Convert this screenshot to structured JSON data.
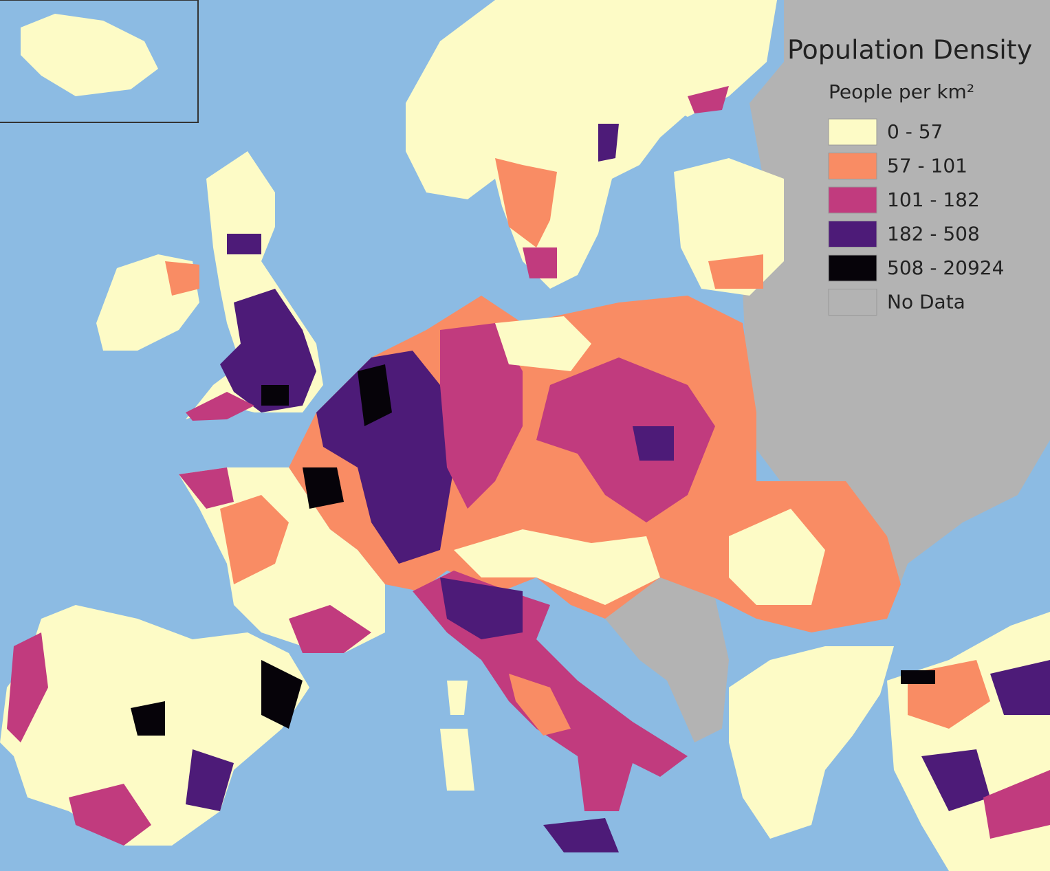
{
  "legend": {
    "title": "Population Density",
    "subtitle": "People per km²",
    "items": [
      {
        "label": "0 - 57",
        "color": "#fdfbc6"
      },
      {
        "label": "57 - 101",
        "color": "#f98c64"
      },
      {
        "label": "101 - 182",
        "color": "#c13b7e"
      },
      {
        "label": "182 - 508",
        "color": "#4d1b78"
      },
      {
        "label": "508 - 20924",
        "color": "#060309"
      },
      {
        "label": "No Data",
        "color": "#b3b3b3"
      }
    ]
  }
}
